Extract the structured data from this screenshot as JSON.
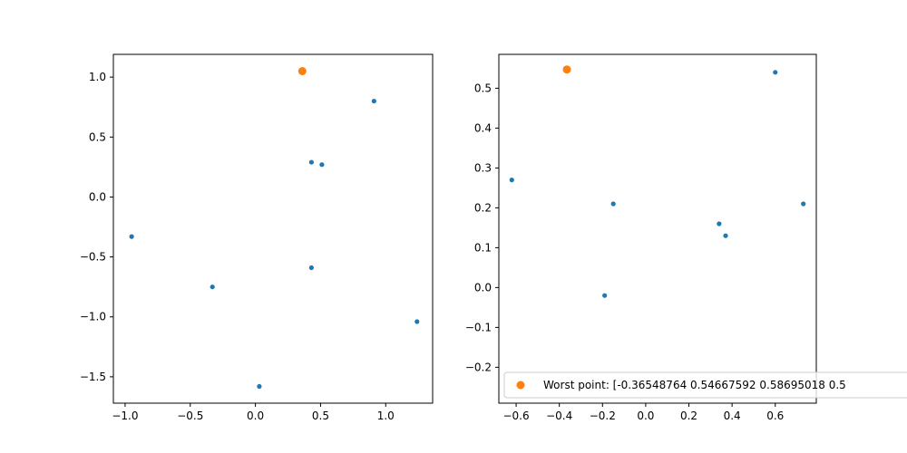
{
  "chart_data": [
    {
      "type": "scatter",
      "xlim": [
        -1.09,
        1.36
      ],
      "ylim": [
        -1.72,
        1.19
      ],
      "xticks": [
        -1.0,
        -0.5,
        0.0,
        0.5,
        1.0
      ],
      "xtick_labels": [
        "−1.0",
        "−0.5",
        "0.0",
        "0.5",
        "1.0"
      ],
      "yticks": [
        -1.5,
        -1.0,
        -0.5,
        0.0,
        0.5,
        1.0
      ],
      "ytick_labels": [
        "−1.5",
        "−1.0",
        "−0.5",
        "0.0",
        "0.5",
        "1.0"
      ],
      "grid": false,
      "series": [
        {
          "color": "#1f77b4",
          "marker": "small-dot",
          "points": [
            {
              "x": -0.95,
              "y": -0.33
            },
            {
              "x": -0.33,
              "y": -0.75
            },
            {
              "x": 0.03,
              "y": -1.58
            },
            {
              "x": 0.43,
              "y": 0.29
            },
            {
              "x": 0.51,
              "y": 0.27
            },
            {
              "x": 0.43,
              "y": -0.59
            },
            {
              "x": 0.91,
              "y": 0.8
            },
            {
              "x": 1.24,
              "y": -1.04
            }
          ]
        },
        {
          "color": "#ff7f0e",
          "marker": "large-dot",
          "points": [
            {
              "x": 0.36,
              "y": 1.05
            }
          ]
        }
      ]
    },
    {
      "type": "scatter",
      "xlim": [
        -0.68,
        0.79
      ],
      "ylim": [
        -0.29,
        0.585
      ],
      "xticks": [
        -0.6,
        -0.4,
        -0.2,
        0.0,
        0.2,
        0.4,
        0.6
      ],
      "xtick_labels": [
        "−0.6",
        "−0.4",
        "−0.2",
        "0.0",
        "0.2",
        "0.4",
        "0.6"
      ],
      "yticks": [
        -0.2,
        -0.1,
        0.0,
        0.1,
        0.2,
        0.3,
        0.4,
        0.5
      ],
      "ytick_labels": [
        "−0.2",
        "−0.1",
        "0.0",
        "0.1",
        "0.2",
        "0.3",
        "0.4",
        "0.5"
      ],
      "grid": false,
      "legend_placement": "bottom-left",
      "series": [
        {
          "color": "#1f77b4",
          "marker": "small-dot",
          "points": [
            {
              "x": -0.62,
              "y": 0.27
            },
            {
              "x": -0.19,
              "y": -0.02
            },
            {
              "x": -0.15,
              "y": 0.21
            },
            {
              "x": 0.34,
              "y": 0.16
            },
            {
              "x": 0.37,
              "y": 0.13
            },
            {
              "x": 0.6,
              "y": 0.54
            },
            {
              "x": 0.73,
              "y": 0.21
            }
          ]
        },
        {
          "name": "Worst point: [-0.36548764  0.54667592  0.58695018  0.5",
          "color": "#ff7f0e",
          "marker": "large-dot",
          "points": [
            {
              "x": -0.365,
              "y": 0.547
            }
          ]
        }
      ]
    }
  ]
}
